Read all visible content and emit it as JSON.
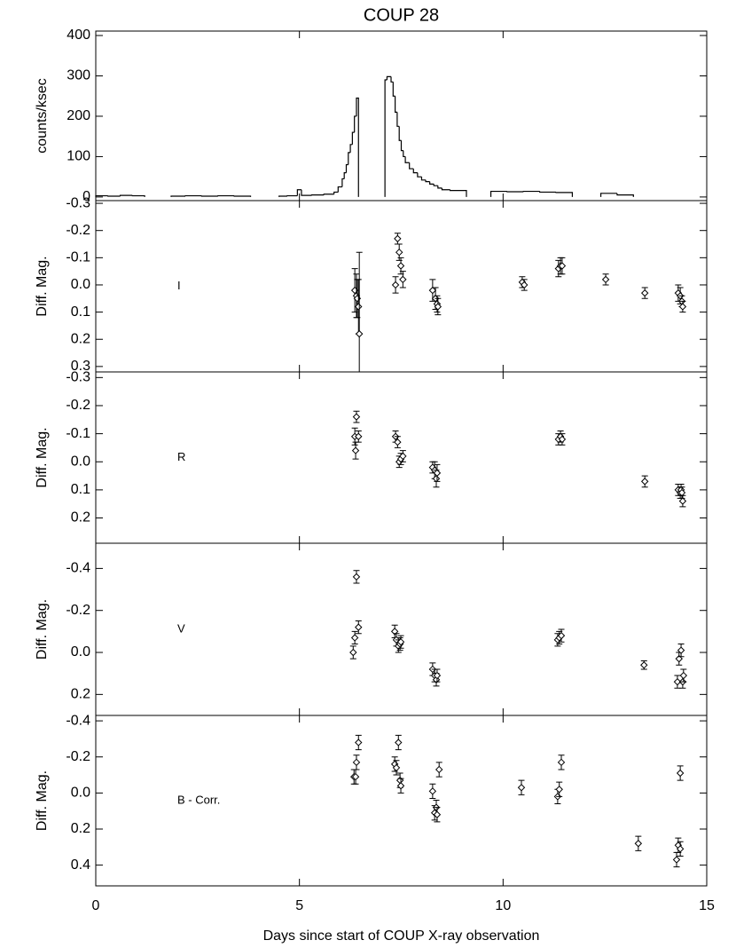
{
  "chart_data": [
    {
      "type": "step",
      "title": "COUP 28",
      "ylabel": "counts/ksec",
      "xlim": [
        0,
        15
      ],
      "xticks": [
        0,
        5,
        10,
        15
      ],
      "ylim": [
        -9,
        411
      ],
      "yticks": [
        0,
        100,
        200,
        300,
        400
      ],
      "segments": [
        {
          "bins": [
            0,
            0.3,
            0.6,
            0.9,
            1.2
          ],
          "values": [
            3,
            2,
            4,
            3
          ]
        },
        {
          "bins": [
            1.85,
            2.2,
            2.6,
            3.0,
            3.4,
            3.8
          ],
          "values": [
            2,
            3,
            2,
            3,
            2
          ]
        },
        {
          "bins": [
            4.5,
            4.7,
            4.95,
            5.05,
            5.3,
            5.6,
            5.85,
            5.95,
            6.05,
            6.1,
            6.15,
            6.2,
            6.25,
            6.3,
            6.35,
            6.4,
            6.45
          ],
          "values": [
            2,
            3,
            18,
            4,
            5,
            7,
            12,
            25,
            45,
            60,
            80,
            110,
            130,
            160,
            200,
            245
          ]
        },
        {
          "bins": [
            7.1,
            7.15,
            7.25,
            7.3,
            7.35,
            7.4,
            7.45,
            7.5,
            7.55,
            7.6,
            7.7,
            7.8,
            7.9,
            8.0,
            8.1,
            8.2,
            8.3,
            8.4,
            8.5,
            8.7,
            9.1
          ],
          "values": [
            290,
            298,
            285,
            250,
            210,
            175,
            140,
            115,
            100,
            85,
            70,
            60,
            50,
            42,
            38,
            32,
            28,
            22,
            18,
            16
          ]
        },
        {
          "bins": [
            9.7,
            10.1,
            10.5,
            10.9,
            11.3,
            11.7
          ],
          "values": [
            14,
            13,
            14,
            12,
            11
          ]
        },
        {
          "bins": [
            12.4,
            12.8,
            13.2
          ],
          "values": [
            9,
            5
          ]
        }
      ]
    },
    {
      "type": "errorbar",
      "band": "I",
      "ylabel": "Diff. Mag.",
      "xlim": [
        0,
        15
      ],
      "xticks": [
        0,
        5,
        10,
        15
      ],
      "ylim": [
        0.32,
        -0.31
      ],
      "yticks": [
        -0.3,
        -0.2,
        -0.1,
        {
          "value": 0,
          "label": "0.0"
        },
        0.1,
        0.2,
        0.3
      ],
      "x": [
        6.36,
        6.4,
        6.42,
        6.45,
        6.47,
        7.36,
        7.41,
        7.45,
        7.49,
        7.54,
        8.27,
        8.34,
        8.38,
        8.4,
        10.47,
        10.52,
        11.36,
        11.41,
        11.45,
        12.52,
        13.48,
        14.3,
        14.35,
        14.39,
        14.41
      ],
      "values": [
        0.02,
        0.04,
        0.05,
        0.08,
        0.18,
        0.0,
        -0.17,
        -0.12,
        -0.07,
        -0.02,
        0.02,
        0.05,
        0.07,
        0.08,
        -0.01,
        0.0,
        -0.06,
        -0.07,
        -0.07,
        -0.02,
        0.03,
        0.03,
        0.04,
        0.06,
        0.08
      ],
      "errors": [
        0.08,
        0.08,
        0.07,
        0.1,
        0.3,
        0.03,
        0.02,
        0.03,
        0.03,
        0.03,
        0.04,
        0.04,
        0.03,
        0.03,
        0.02,
        0.02,
        0.03,
        0.03,
        0.03,
        0.02,
        0.02,
        0.03,
        0.03,
        0.02,
        0.02
      ]
    },
    {
      "type": "errorbar",
      "band": "R",
      "ylabel": "Diff. Mag.",
      "xlim": [
        0,
        15
      ],
      "xticks": [
        0,
        5,
        10,
        15
      ],
      "ylim": [
        0.29,
        -0.32
      ],
      "yticks": [
        -0.3,
        -0.2,
        -0.1,
        {
          "value": 0,
          "label": "0.0"
        },
        0.1,
        0.2
      ],
      "x": [
        6.36,
        6.38,
        6.4,
        6.45,
        7.36,
        7.41,
        7.45,
        7.49,
        7.54,
        8.27,
        8.32,
        8.36,
        8.38,
        11.36,
        11.41,
        11.45,
        13.48,
        14.3,
        14.35,
        14.37,
        14.39,
        14.41
      ],
      "values": [
        -0.09,
        -0.04,
        -0.16,
        -0.09,
        -0.09,
        -0.07,
        0.0,
        -0.01,
        -0.02,
        0.02,
        0.03,
        0.06,
        0.04,
        -0.08,
        -0.09,
        -0.08,
        0.07,
        0.1,
        0.11,
        0.1,
        0.11,
        0.14
      ],
      "errors": [
        0.03,
        0.03,
        0.02,
        0.02,
        0.02,
        0.02,
        0.02,
        0.02,
        0.02,
        0.02,
        0.03,
        0.03,
        0.03,
        0.02,
        0.02,
        0.02,
        0.02,
        0.02,
        0.02,
        0.02,
        0.02,
        0.02
      ]
    },
    {
      "type": "errorbar",
      "band": "V",
      "ylabel": "Diff. Mag.",
      "xlim": [
        0,
        15
      ],
      "xticks": [
        0,
        5,
        10,
        15
      ],
      "ylim": [
        0.3,
        -0.52
      ],
      "yticks": [
        -0.4,
        -0.2,
        {
          "value": 0,
          "label": "0.0"
        },
        0.2
      ],
      "x": [
        6.32,
        6.36,
        6.4,
        6.45,
        7.34,
        7.38,
        7.43,
        7.47,
        7.49,
        8.27,
        8.32,
        8.36,
        8.38,
        11.34,
        11.38,
        11.43,
        13.46,
        14.28,
        14.32,
        14.37,
        14.41,
        14.43
      ],
      "values": [
        0.0,
        -0.07,
        -0.36,
        -0.12,
        -0.1,
        -0.06,
        -0.03,
        -0.04,
        -0.05,
        0.08,
        0.11,
        0.13,
        0.11,
        -0.06,
        -0.07,
        -0.08,
        0.06,
        0.14,
        0.03,
        -0.01,
        0.14,
        0.11
      ],
      "errors": [
        0.03,
        0.03,
        0.03,
        0.03,
        0.03,
        0.03,
        0.03,
        0.03,
        0.03,
        0.03,
        0.03,
        0.03,
        0.03,
        0.03,
        0.03,
        0.03,
        0.02,
        0.03,
        0.03,
        0.03,
        0.03,
        0.03
      ]
    },
    {
      "type": "errorbar",
      "band": "B - Corr.",
      "ylabel": "Diff. Mag.",
      "xlabel": "Days since start of COUP X-ray observation",
      "xlim": [
        0,
        15
      ],
      "xticks": [
        0,
        5,
        10,
        15
      ],
      "ylim": [
        0.515,
        -0.43
      ],
      "yticks": [
        -0.4,
        -0.2,
        {
          "value": 0,
          "label": "0.0"
        },
        0.2,
        0.4
      ],
      "x": [
        6.34,
        6.38,
        6.4,
        6.45,
        7.34,
        7.38,
        7.43,
        7.47,
        7.49,
        8.27,
        8.32,
        8.36,
        8.38,
        8.43,
        10.45,
        11.34,
        11.38,
        11.43,
        13.32,
        14.26,
        14.3,
        14.35,
        14.35
      ],
      "values": [
        -0.09,
        -0.09,
        -0.17,
        -0.28,
        -0.16,
        -0.14,
        -0.28,
        -0.07,
        -0.04,
        -0.01,
        0.11,
        0.08,
        0.12,
        -0.13,
        -0.03,
        0.02,
        -0.02,
        -0.17,
        0.28,
        0.37,
        0.29,
        0.31,
        -0.11
      ],
      "errors": [
        0.04,
        0.04,
        0.04,
        0.04,
        0.04,
        0.04,
        0.04,
        0.04,
        0.04,
        0.04,
        0.04,
        0.04,
        0.04,
        0.04,
        0.04,
        0.04,
        0.04,
        0.04,
        0.04,
        0.04,
        0.04,
        0.04,
        0.04
      ]
    }
  ]
}
